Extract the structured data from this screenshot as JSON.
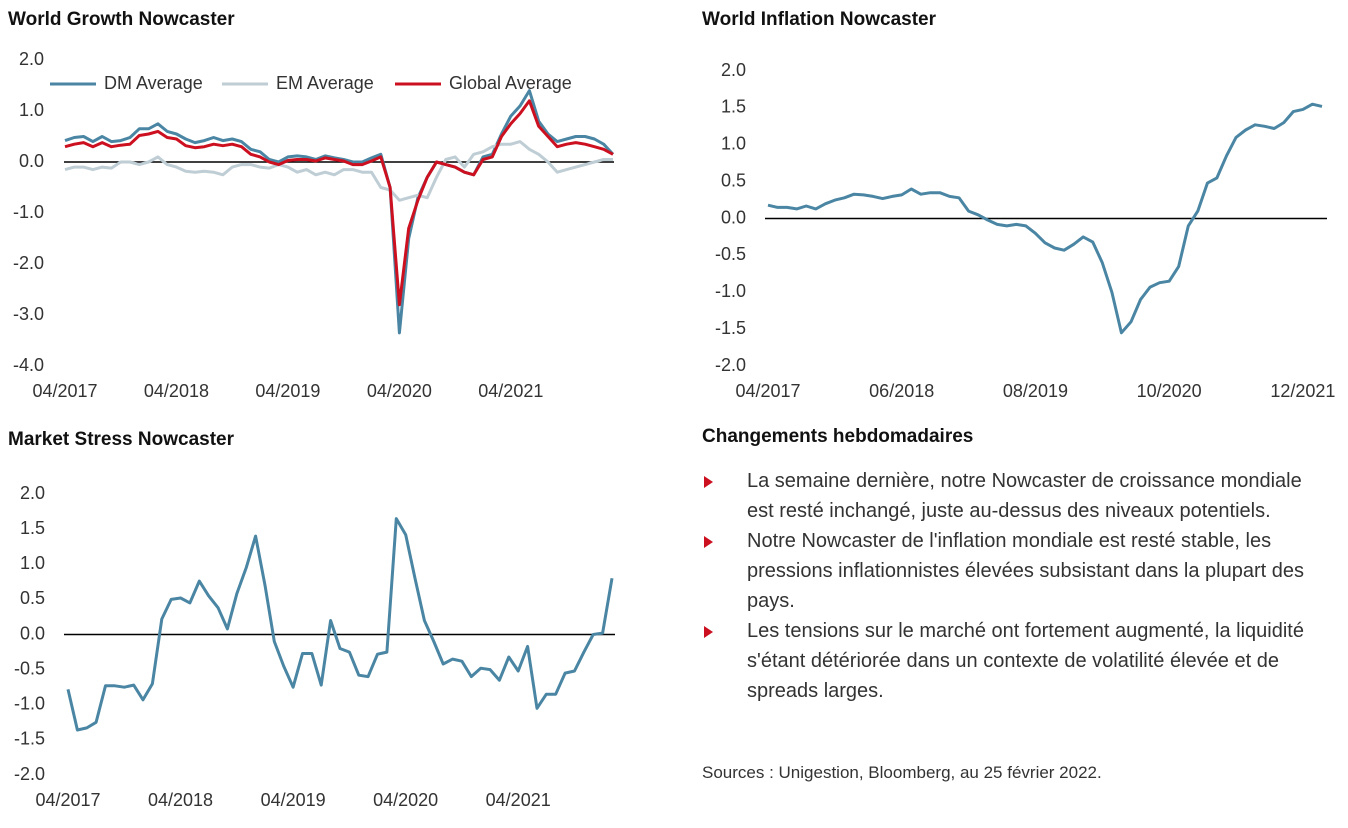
{
  "chart_data": [
    {
      "type": "line",
      "title": "World Growth Nowcaster",
      "categories": [
        "04/2017",
        null,
        null,
        null,
        null,
        null,
        null,
        null,
        null,
        null,
        null,
        null,
        "04/2018",
        null,
        null,
        null,
        null,
        null,
        null,
        null,
        null,
        null,
        null,
        null,
        "04/2019",
        null,
        null,
        null,
        null,
        null,
        null,
        null,
        null,
        null,
        null,
        null,
        "04/2020",
        null,
        null,
        null,
        null,
        null,
        null,
        null,
        null,
        null,
        null,
        null,
        "04/2021",
        null,
        null,
        null,
        null,
        null,
        null,
        null,
        null,
        null,
        null,
        null
      ],
      "series": [
        {
          "name": "DM Average",
          "color": "#4a86a3",
          "values": [
            0.42,
            0.48,
            0.5,
            0.4,
            0.5,
            0.4,
            0.42,
            0.48,
            0.65,
            0.65,
            0.75,
            0.6,
            0.55,
            0.45,
            0.38,
            0.42,
            0.48,
            0.42,
            0.45,
            0.4,
            0.25,
            0.2,
            0.05,
            0.0,
            0.1,
            0.12,
            0.1,
            0.05,
            0.12,
            0.08,
            0.05,
            0.0,
            0.0,
            0.08,
            0.15,
            -0.5,
            -3.35,
            -1.5,
            -0.7,
            -0.3,
            0.0,
            -0.05,
            -0.1,
            -0.2,
            -0.25,
            0.1,
            0.15,
            0.55,
            0.9,
            1.1,
            1.4,
            0.8,
            0.55,
            0.4,
            0.45,
            0.5,
            0.5,
            0.45,
            0.35,
            0.15
          ]
        },
        {
          "name": "EM Average",
          "color": "#bfcdd5",
          "values": [
            -0.15,
            -0.1,
            -0.1,
            -0.15,
            -0.1,
            -0.12,
            0.0,
            0.0,
            -0.05,
            0.0,
            0.1,
            -0.05,
            -0.1,
            -0.18,
            -0.2,
            -0.18,
            -0.2,
            -0.25,
            -0.1,
            -0.05,
            -0.05,
            -0.1,
            -0.12,
            -0.05,
            -0.1,
            -0.2,
            -0.15,
            -0.25,
            -0.2,
            -0.25,
            -0.15,
            -0.15,
            -0.2,
            -0.2,
            -0.5,
            -0.55,
            -0.75,
            -0.7,
            -0.65,
            -0.7,
            -0.3,
            0.05,
            0.1,
            -0.1,
            0.15,
            0.2,
            0.3,
            0.35,
            0.35,
            0.4,
            0.25,
            0.15,
            0.0,
            -0.2,
            -0.15,
            -0.1,
            -0.05,
            0.0,
            0.05,
            0.05
          ]
        },
        {
          "name": "Global Average",
          "color": "#cc1020",
          "values": [
            0.3,
            0.35,
            0.38,
            0.3,
            0.38,
            0.3,
            0.33,
            0.35,
            0.52,
            0.55,
            0.6,
            0.48,
            0.45,
            0.32,
            0.28,
            0.3,
            0.35,
            0.32,
            0.35,
            0.3,
            0.15,
            0.1,
            0.0,
            -0.05,
            0.03,
            0.05,
            0.05,
            0.02,
            0.08,
            0.05,
            0.02,
            -0.05,
            -0.05,
            0.02,
            0.1,
            -0.5,
            -2.8,
            -1.3,
            -0.75,
            -0.3,
            0.0,
            -0.05,
            -0.1,
            -0.2,
            -0.25,
            0.05,
            0.1,
            0.5,
            0.75,
            0.95,
            1.2,
            0.7,
            0.5,
            0.3,
            0.35,
            0.38,
            0.35,
            0.3,
            0.25,
            0.15
          ]
        }
      ],
      "ylim": [
        -4,
        2
      ],
      "yticks": [
        {
          "value": 2,
          "label": "2.0"
        },
        {
          "value": 1,
          "label": "1.0"
        },
        {
          "value": 0,
          "label": "0.0"
        },
        {
          "value": -1,
          "label": "-1.0"
        },
        {
          "value": -2,
          "label": "-2.0"
        },
        {
          "value": -3,
          "label": "-3.0"
        },
        {
          "value": -4,
          "label": "-4.0"
        }
      ],
      "legend": "top"
    },
    {
      "type": "line",
      "title": "World Inflation Nowcaster",
      "categories": [
        "04/2017",
        null,
        null,
        null,
        null,
        null,
        null,
        null,
        null,
        null,
        null,
        null,
        null,
        null,
        "06/2018",
        null,
        null,
        null,
        null,
        null,
        null,
        null,
        null,
        null,
        null,
        null,
        null,
        null,
        "08/2019",
        null,
        null,
        null,
        null,
        null,
        null,
        null,
        null,
        null,
        null,
        null,
        null,
        null,
        "10/2020",
        null,
        null,
        null,
        null,
        null,
        null,
        null,
        null,
        null,
        null,
        null,
        null,
        null,
        "12/2021",
        null,
        null
      ],
      "values": [
        0.18,
        0.15,
        0.15,
        0.13,
        0.17,
        0.13,
        0.2,
        0.25,
        0.28,
        0.33,
        0.32,
        0.3,
        0.27,
        0.3,
        0.32,
        0.4,
        0.33,
        0.35,
        0.35,
        0.3,
        0.28,
        0.1,
        0.05,
        -0.02,
        -0.08,
        -0.1,
        -0.08,
        -0.1,
        -0.2,
        -0.33,
        -0.4,
        -0.43,
        -0.35,
        -0.25,
        -0.32,
        -0.6,
        -1.0,
        -1.55,
        -1.4,
        -1.1,
        -0.93,
        -0.87,
        -0.85,
        -0.65,
        -0.1,
        0.1,
        0.48,
        0.55,
        0.85,
        1.1,
        1.2,
        1.27,
        1.25,
        1.22,
        1.3,
        1.45,
        1.48,
        1.55,
        1.52
      ],
      "color": "#4a86a3",
      "ylim": [
        -2,
        2
      ],
      "yticks": [
        {
          "value": 2,
          "label": "2.0"
        },
        1.5,
        {
          "value": 1,
          "label": "1.0"
        },
        0.5,
        {
          "value": 0,
          "label": "0.0"
        },
        -0.5,
        {
          "value": -1,
          "label": "-1.0"
        },
        -1.5,
        {
          "value": -2,
          "label": "-2.0"
        }
      ]
    },
    {
      "type": "line",
      "title": "Market Stress Nowcaster",
      "categories": [
        "04/2017",
        null,
        null,
        null,
        null,
        null,
        null,
        null,
        null,
        null,
        null,
        null,
        "04/2018",
        null,
        null,
        null,
        null,
        null,
        null,
        null,
        null,
        null,
        null,
        null,
        "04/2019",
        null,
        null,
        null,
        null,
        null,
        null,
        null,
        null,
        null,
        null,
        null,
        "04/2020",
        null,
        null,
        null,
        null,
        null,
        null,
        null,
        null,
        null,
        null,
        null,
        "04/2021",
        null,
        null,
        null,
        null,
        null,
        null,
        null,
        null,
        null,
        null
      ],
      "values": [
        -0.78,
        -1.36,
        -1.33,
        -1.25,
        -0.73,
        -0.73,
        -0.75,
        -0.72,
        -0.93,
        -0.7,
        0.22,
        0.5,
        0.52,
        0.45,
        0.76,
        0.55,
        0.38,
        0.08,
        0.58,
        0.95,
        1.4,
        0.7,
        -0.1,
        -0.45,
        -0.75,
        -0.27,
        -0.27,
        -0.72,
        0.2,
        -0.2,
        -0.25,
        -0.58,
        -0.6,
        -0.28,
        -0.25,
        1.65,
        1.42,
        0.8,
        0.2,
        -0.1,
        -0.42,
        -0.35,
        -0.38,
        -0.6,
        -0.48,
        -0.5,
        -0.65,
        -0.32,
        -0.52,
        -0.17,
        -1.05,
        -0.85,
        -0.85,
        -0.55,
        -0.52,
        -0.25,
        0.0,
        0.02,
        0.8
      ],
      "color": "#4a86a3",
      "ylim": [
        -2,
        2
      ],
      "yticks": [
        {
          "value": 2,
          "label": "2.0"
        },
        1.5,
        {
          "value": 1,
          "label": "1.0"
        },
        0.5,
        {
          "value": 0,
          "label": "0.0"
        },
        -0.5,
        {
          "value": -1,
          "label": "-1.0"
        },
        -1.5,
        {
          "value": -2,
          "label": "-2.0"
        }
      ]
    }
  ],
  "commentary": {
    "title": "Changements hebdomadaires",
    "bullets": [
      "La semaine dernière, notre Nowcaster de croissance mondiale est resté inchangé, juste au-dessus des niveaux potentiels.",
      "Notre Nowcaster de l'inflation mondiale est resté stable, les pressions inflationnistes élevées subsistant dans la plupart des pays.",
      "Les tensions sur le marché ont fortement augmenté, la liquidité s'étant détériorée dans un contexte de volatilité élevée et de spreads larges."
    ],
    "source": "Sources : Unigestion, Bloomberg, au 25 février 2022."
  }
}
